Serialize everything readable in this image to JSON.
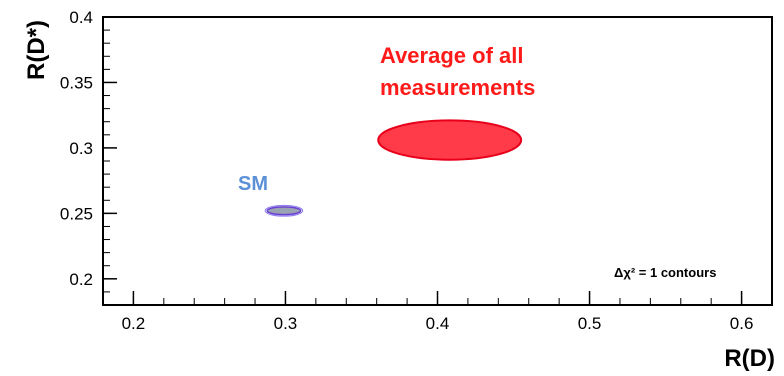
{
  "chart_data": {
    "type": "scatter",
    "title": "",
    "xlabel": "R(D)",
    "ylabel": "R(D*)",
    "xlim": [
      0.18,
      0.62
    ],
    "ylim": [
      0.18,
      0.4
    ],
    "x_ticks": [
      0.2,
      0.3,
      0.4,
      0.5,
      0.6
    ],
    "y_ticks": [
      0.2,
      0.25,
      0.3,
      0.35,
      0.4
    ],
    "x_tick_labels": [
      "0.2",
      "0.3",
      "0.4",
      "0.5",
      "0.6"
    ],
    "y_tick_labels": [
      "0.2",
      "0.25",
      "0.3",
      "0.35",
      "0.4"
    ],
    "grid": false,
    "series": [
      {
        "name": "Average of all measurements",
        "shape": "ellipse",
        "x": 0.408,
        "y": 0.306,
        "x_halfwidth": 0.047,
        "y_halfwidth": 0.015,
        "color": "#ff3b4a",
        "edge_color": "#e8001a"
      },
      {
        "name": "SM",
        "shape": "ellipse",
        "x": 0.299,
        "y": 0.252,
        "x_halfwidth": 0.011,
        "y_halfwidth": 0.003,
        "color": "#9aa3b4",
        "edge_color": "#6a3fd0"
      }
    ],
    "annotations": {
      "average_line1": "Average of all",
      "average_line2": "measurements",
      "sm": "SM",
      "contours": "Δχ² = 1 contours"
    },
    "colors": {
      "average_text": "#ff1a1a",
      "sm_text": "#5b8fd6"
    }
  }
}
